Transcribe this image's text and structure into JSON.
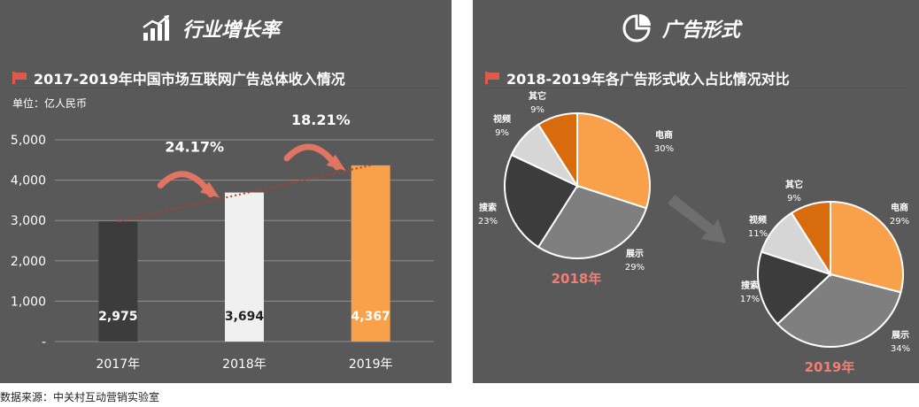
{
  "left_panel": {
    "header": "行业增长率",
    "chart_title": "2017-2019年中国市场互联网广告总体收入情况",
    "unit": "单位：亿人民币"
  },
  "right_panel": {
    "header": "广告形式",
    "chart_title": "2018-2019年各广告形式收入占比情况对比"
  },
  "source": "数据来源：中关村互动营销实验室",
  "colors": {
    "panel_bg": "#595959",
    "accent_red": "#e05a4a",
    "orange": "#f8a04a",
    "dark_orange": "#d96b0f",
    "dark_gray": "#3c3c3c",
    "mid_gray": "#7f7f7f",
    "light_gray": "#d6d6d6"
  },
  "chart_data": [
    {
      "type": "bar",
      "categories": [
        "2017年",
        "2018年",
        "2019年"
      ],
      "values": [
        2975,
        3694,
        4367
      ],
      "value_labels": [
        "2,975",
        "3,694",
        "4,367"
      ],
      "bar_colors": [
        "#3c3c3c",
        "#f0f0f0",
        "#f8a04a"
      ],
      "yticks": [
        "-",
        "1,000",
        "2,000",
        "3,000",
        "4,000",
        "5,000"
      ],
      "ylim": [
        0,
        5000
      ],
      "growth_labels": [
        "24.17%",
        "18.21%"
      ],
      "grid": true,
      "trendline": "dotted"
    },
    {
      "type": "pie",
      "title": "2018年",
      "slices": [
        {
          "label": "电商",
          "value": 30,
          "pct": "30%",
          "color": "#f8a04a"
        },
        {
          "label": "展示",
          "value": 29,
          "pct": "29%",
          "color": "#7f7f7f"
        },
        {
          "label": "搜索",
          "value": 23,
          "pct": "23%",
          "color": "#3c3c3c"
        },
        {
          "label": "视频",
          "value": 9,
          "pct": "9%",
          "color": "#d6d6d6"
        },
        {
          "label": "其它",
          "value": 9,
          "pct": "9%",
          "color": "#d96b0f"
        }
      ]
    },
    {
      "type": "pie",
      "title": "2019年",
      "slices": [
        {
          "label": "电商",
          "value": 29,
          "pct": "29%",
          "color": "#f8a04a"
        },
        {
          "label": "展示",
          "value": 34,
          "pct": "34%",
          "color": "#7f7f7f"
        },
        {
          "label": "搜索",
          "value": 17,
          "pct": "17%",
          "color": "#3c3c3c"
        },
        {
          "label": "视频",
          "value": 11,
          "pct": "11%",
          "color": "#d6d6d6"
        },
        {
          "label": "其它",
          "value": 9,
          "pct": "9%",
          "color": "#d96b0f"
        }
      ]
    }
  ]
}
